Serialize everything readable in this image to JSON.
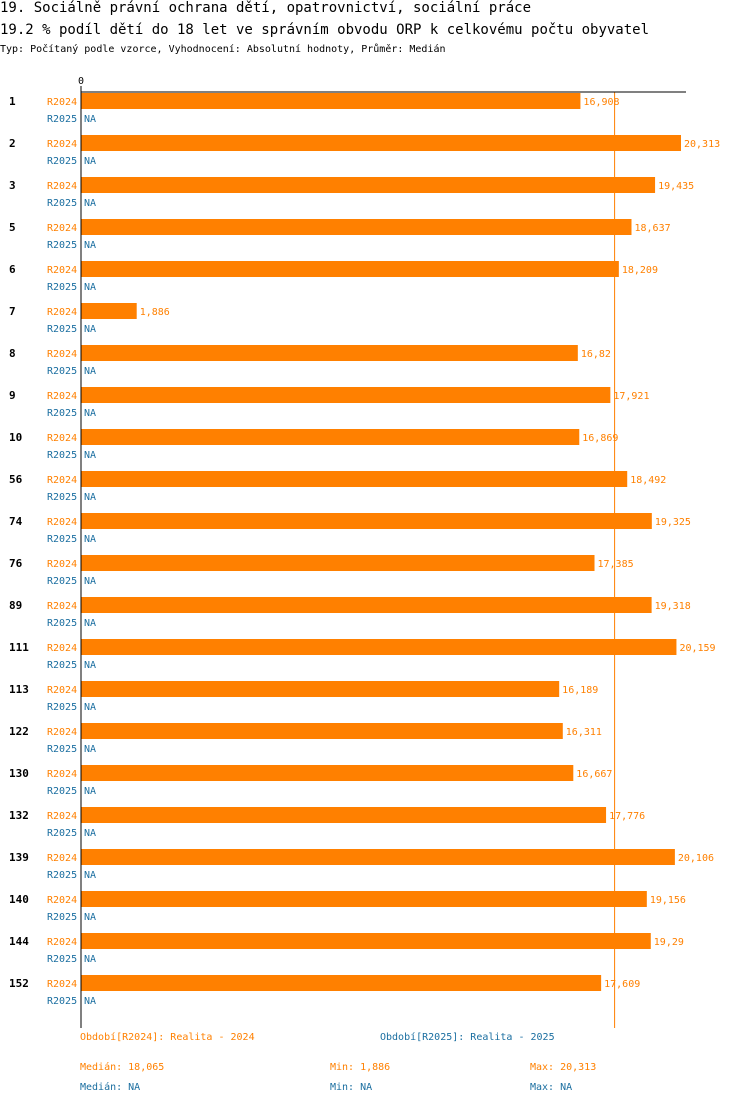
{
  "title": "19. Sociálně právní ochrana dětí, opatrovnictví, sociální práce",
  "subtitle": "19.2 % podíl dětí do 18 let ve správním obvodu ORP k celkovému počtu obyvatel",
  "meta": "Typ: Počítaný podle vzorce, Vyhodnocení: Absolutní hodnoty, Průměr: Medián",
  "colors": {
    "r2024": "#ff8000",
    "r2025": "#1a6ea0",
    "median_line": "#ff8000"
  },
  "chart_data": {
    "type": "bar",
    "orientation": "horizontal",
    "xlim": [
      0,
      20.313
    ],
    "x_tick_labels": [
      "0"
    ],
    "median_2024": 18.065,
    "categories": [
      "1",
      "2",
      "3",
      "5",
      "6",
      "7",
      "8",
      "9",
      "10",
      "56",
      "74",
      "76",
      "89",
      "111",
      "113",
      "122",
      "130",
      "132",
      "139",
      "140",
      "144",
      "152"
    ],
    "series": [
      {
        "name": "R2024",
        "values": [
          16.908,
          20.313,
          19.435,
          18.637,
          18.209,
          1.886,
          16.82,
          17.921,
          16.869,
          18.492,
          19.325,
          17.385,
          19.318,
          20.159,
          16.189,
          16.311,
          16.667,
          17.776,
          20.106,
          19.156,
          19.29,
          17.609
        ],
        "labels": [
          "16,908",
          "20,313",
          "19,435",
          "18,637",
          "18,209",
          "1,886",
          "16,82",
          "17,921",
          "16,869",
          "18,492",
          "19,325",
          "17,385",
          "19,318",
          "20,159",
          "16,189",
          "16,311",
          "16,667",
          "17,776",
          "20,106",
          "19,156",
          "19,29",
          "17,609"
        ]
      },
      {
        "name": "R2025",
        "values": [
          null,
          null,
          null,
          null,
          null,
          null,
          null,
          null,
          null,
          null,
          null,
          null,
          null,
          null,
          null,
          null,
          null,
          null,
          null,
          null,
          null,
          null
        ],
        "labels": [
          "NA",
          "NA",
          "NA",
          "NA",
          "NA",
          "NA",
          "NA",
          "NA",
          "NA",
          "NA",
          "NA",
          "NA",
          "NA",
          "NA",
          "NA",
          "NA",
          "NA",
          "NA",
          "NA",
          "NA",
          "NA",
          "NA"
        ]
      }
    ]
  },
  "legend": {
    "r2024": "Období[R2024]: Realita - 2024",
    "r2025": "Období[R2025]: Realita - 2025"
  },
  "stats": {
    "r2024": {
      "median": "Medián: 18,065",
      "min": "Min: 1,886",
      "max": "Max: 20,313"
    },
    "r2025": {
      "median": "Medián: NA",
      "min": "Min: NA",
      "max": "Max: NA"
    }
  }
}
